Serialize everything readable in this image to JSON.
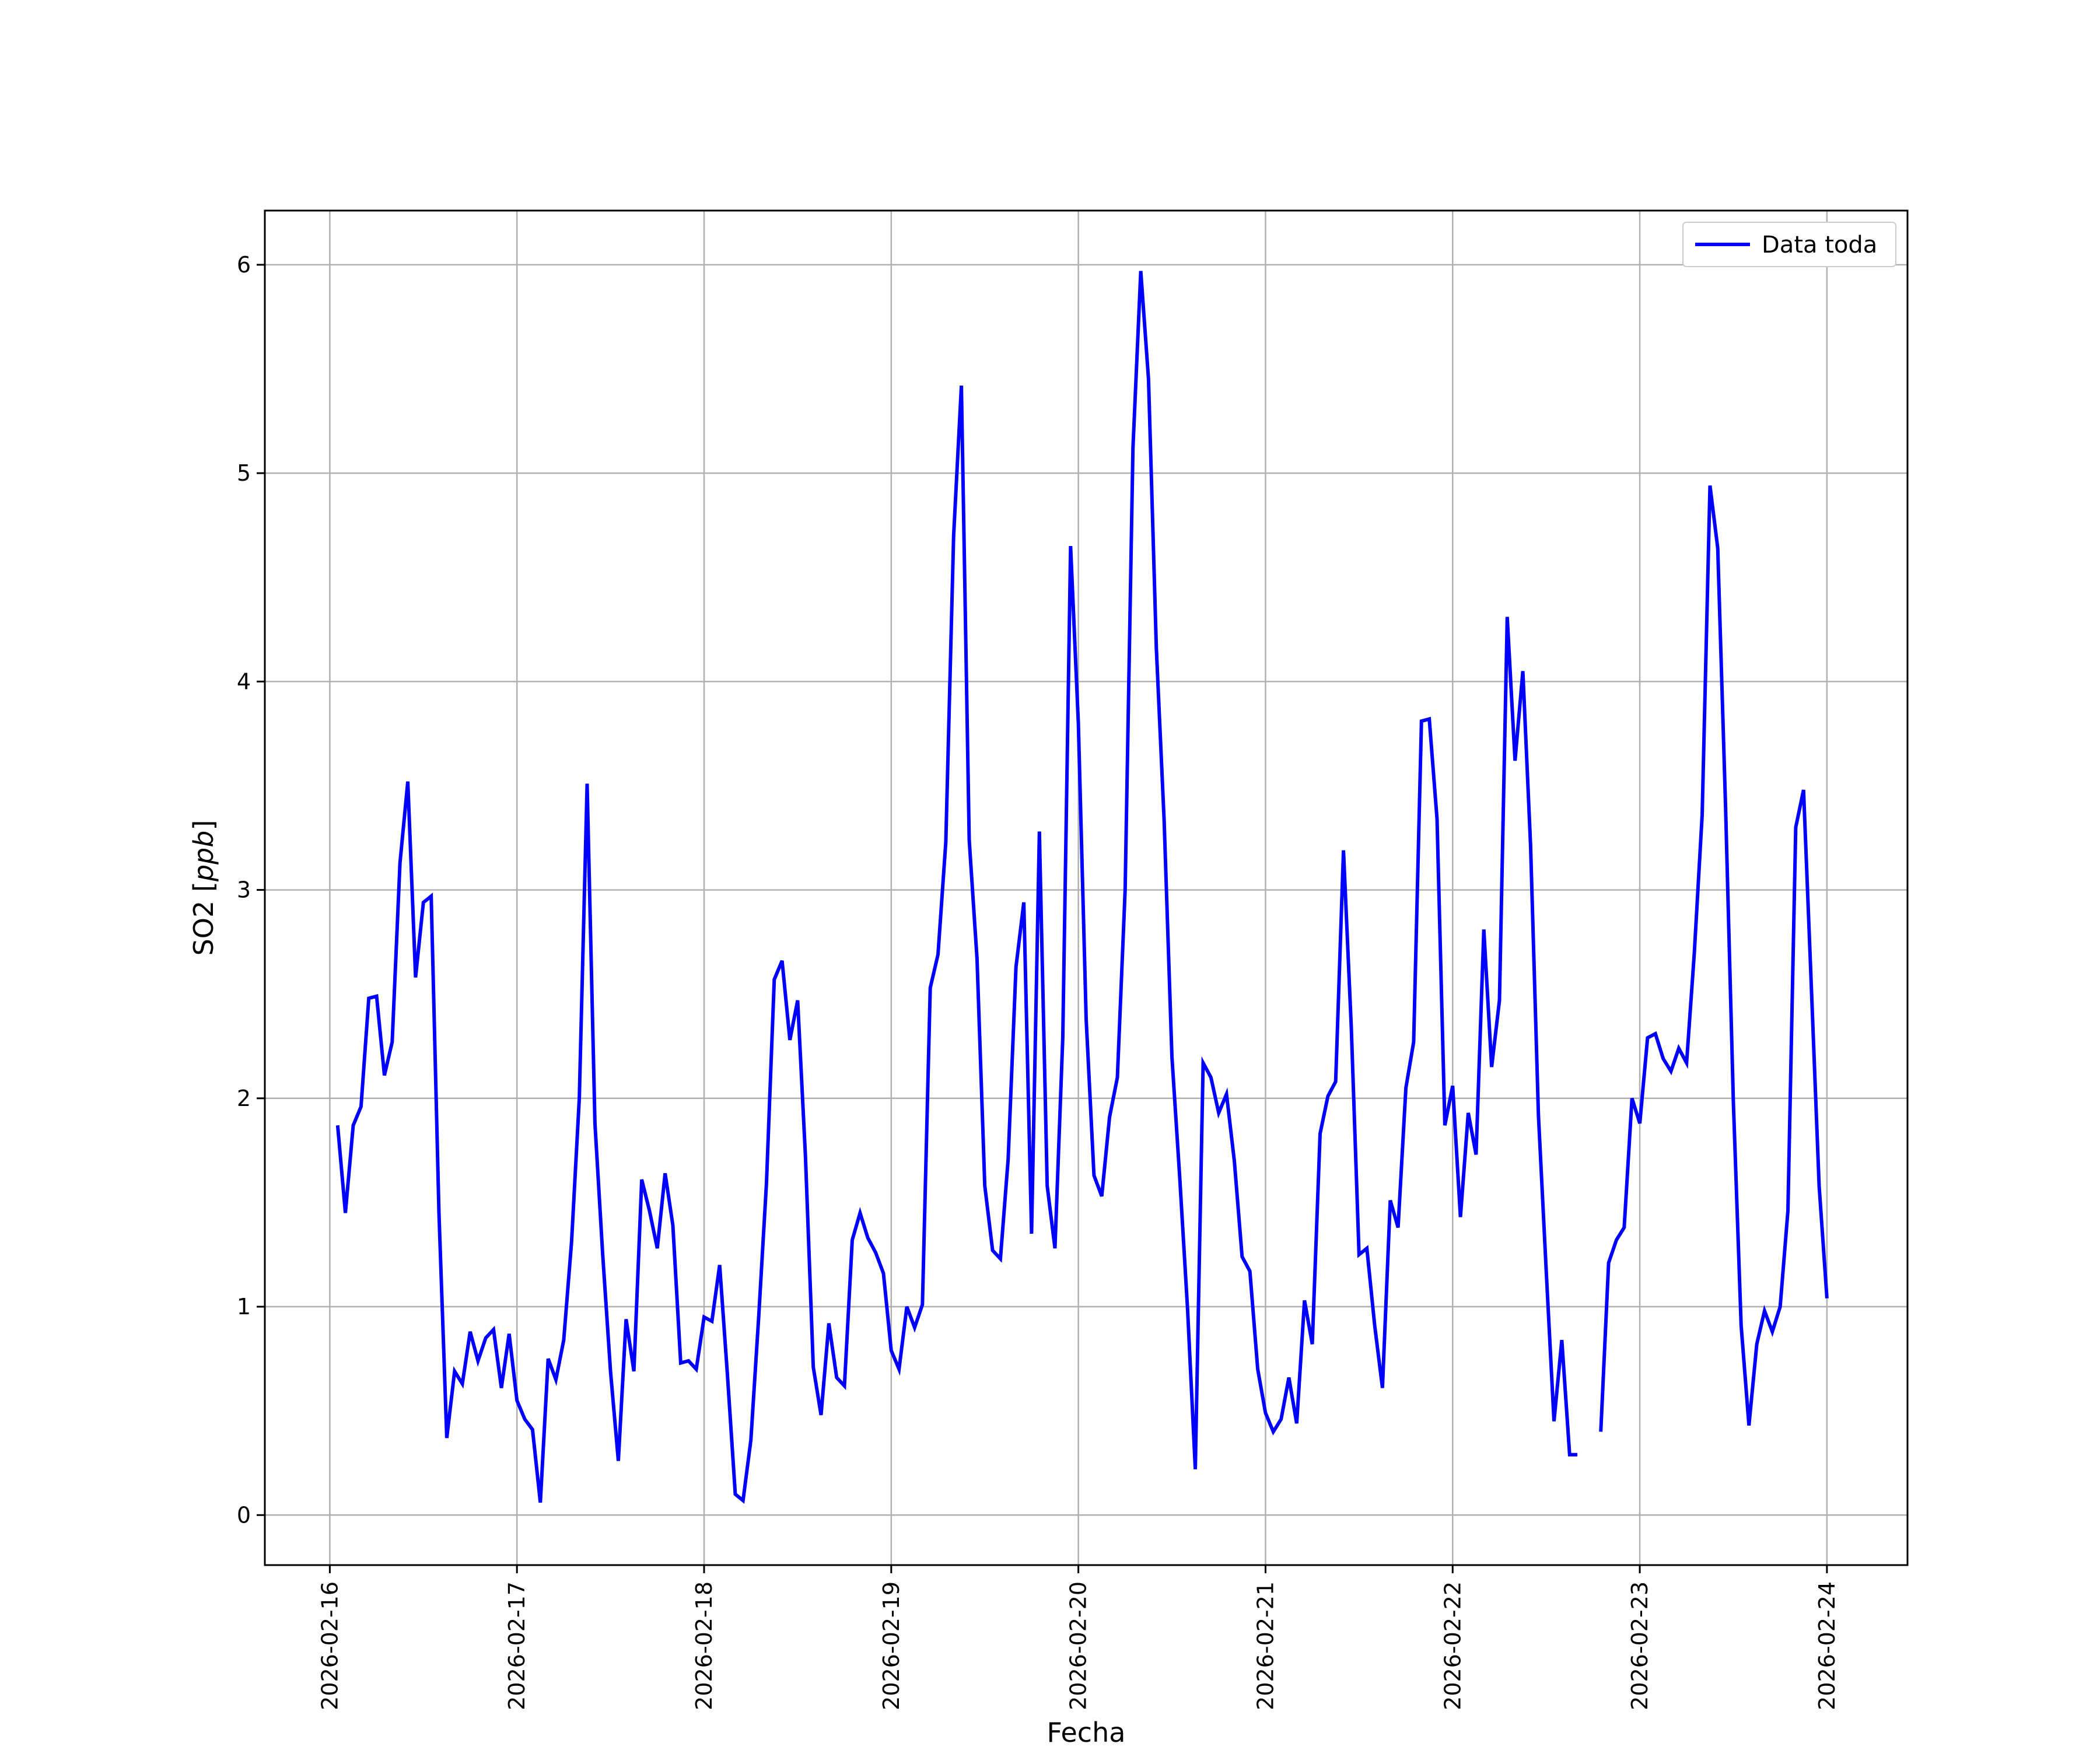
{
  "chart_data": {
    "type": "line",
    "title": "",
    "xlabel": "Fecha",
    "ylabel_prefix": "SO2 [",
    "ylabel_unit": "ppb",
    "ylabel_suffix": "]",
    "xlim": [
      "2026-02-15T15:40",
      "2026-02-24T10:20"
    ],
    "ylim": [
      -0.24,
      6.26
    ],
    "x_tick_labels": [
      "2026-02-16",
      "2026-02-17",
      "2026-02-18",
      "2026-02-19",
      "2026-02-20",
      "2026-02-21",
      "2026-02-22",
      "2026-02-23",
      "2026-02-24"
    ],
    "y_ticks": [
      0,
      1,
      2,
      3,
      4,
      5,
      6
    ],
    "y_tick_labels": [
      "0",
      "1",
      "2",
      "3",
      "4",
      "5",
      "6"
    ],
    "grid": true,
    "legend_position": "upper right",
    "colors": {
      "line": "#0000ff",
      "grid": "#b0b0b0",
      "frame": "#000000"
    },
    "series": [
      {
        "name": "Data toda",
        "segments": [
          {
            "x": [
              "2026-02-16T01:00",
              "2026-02-16T02:00",
              "2026-02-16T03:00",
              "2026-02-16T04:00",
              "2026-02-16T05:00",
              "2026-02-16T06:00",
              "2026-02-16T07:00",
              "2026-02-16T08:00",
              "2026-02-16T09:00",
              "2026-02-16T10:00",
              "2026-02-16T11:00",
              "2026-02-16T12:00",
              "2026-02-16T13:00",
              "2026-02-16T14:00",
              "2026-02-16T15:00",
              "2026-02-16T16:00",
              "2026-02-16T17:00",
              "2026-02-16T18:00",
              "2026-02-16T19:00",
              "2026-02-16T20:00",
              "2026-02-16T21:00",
              "2026-02-16T22:00",
              "2026-02-16T23:00",
              "2026-02-17T00:00",
              "2026-02-17T01:00",
              "2026-02-17T02:00",
              "2026-02-17T03:00",
              "2026-02-17T04:00",
              "2026-02-17T05:00",
              "2026-02-17T06:00",
              "2026-02-17T07:00",
              "2026-02-17T08:00",
              "2026-02-17T09:00",
              "2026-02-17T10:00",
              "2026-02-17T11:00",
              "2026-02-17T12:00",
              "2026-02-17T13:00",
              "2026-02-17T14:00",
              "2026-02-17T15:00",
              "2026-02-17T16:00",
              "2026-02-17T17:00",
              "2026-02-17T18:00",
              "2026-02-17T19:00",
              "2026-02-17T20:00",
              "2026-02-17T21:00",
              "2026-02-17T22:00",
              "2026-02-17T23:00",
              "2026-02-18T00:00",
              "2026-02-18T01:00",
              "2026-02-18T02:00",
              "2026-02-18T03:00",
              "2026-02-18T04:00",
              "2026-02-18T05:00",
              "2026-02-18T06:00",
              "2026-02-18T07:00",
              "2026-02-18T08:00",
              "2026-02-18T09:00",
              "2026-02-18T10:00",
              "2026-02-18T11:00",
              "2026-02-18T12:00",
              "2026-02-18T13:00",
              "2026-02-18T14:00",
              "2026-02-18T15:00",
              "2026-02-18T16:00",
              "2026-02-18T17:00",
              "2026-02-18T18:00",
              "2026-02-18T19:00",
              "2026-02-18T20:00",
              "2026-02-18T21:00",
              "2026-02-18T22:00",
              "2026-02-18T23:00",
              "2026-02-19T00:00",
              "2026-02-19T01:00",
              "2026-02-19T02:00",
              "2026-02-19T03:00",
              "2026-02-19T04:00",
              "2026-02-19T05:00",
              "2026-02-19T06:00",
              "2026-02-19T07:00",
              "2026-02-19T08:00",
              "2026-02-19T09:00",
              "2026-02-19T10:00",
              "2026-02-19T11:00",
              "2026-02-19T12:00",
              "2026-02-19T13:00",
              "2026-02-19T14:00",
              "2026-02-19T15:00",
              "2026-02-19T16:00",
              "2026-02-19T17:00",
              "2026-02-19T18:00",
              "2026-02-19T19:00",
              "2026-02-19T20:00",
              "2026-02-19T21:00",
              "2026-02-19T22:00",
              "2026-02-19T23:00",
              "2026-02-20T00:00",
              "2026-02-20T01:00",
              "2026-02-20T02:00",
              "2026-02-20T03:00",
              "2026-02-20T04:00",
              "2026-02-20T05:00",
              "2026-02-20T06:00",
              "2026-02-20T07:00",
              "2026-02-20T08:00",
              "2026-02-20T09:00",
              "2026-02-20T10:00",
              "2026-02-20T11:00",
              "2026-02-20T12:00",
              "2026-02-20T13:00",
              "2026-02-20T14:00",
              "2026-02-20T15:00",
              "2026-02-20T16:00",
              "2026-02-20T17:00",
              "2026-02-20T18:00",
              "2026-02-20T19:00",
              "2026-02-20T20:00",
              "2026-02-20T21:00",
              "2026-02-20T22:00",
              "2026-02-20T23:00",
              "2026-02-21T00:00",
              "2026-02-21T01:00",
              "2026-02-21T02:00",
              "2026-02-21T03:00",
              "2026-02-21T04:00",
              "2026-02-21T05:00",
              "2026-02-21T06:00",
              "2026-02-21T07:00",
              "2026-02-21T08:00",
              "2026-02-21T09:00",
              "2026-02-21T10:00",
              "2026-02-21T11:00",
              "2026-02-21T12:00",
              "2026-02-21T13:00",
              "2026-02-21T14:00",
              "2026-02-21T15:00",
              "2026-02-21T16:00",
              "2026-02-21T17:00",
              "2026-02-21T18:00",
              "2026-02-21T19:00",
              "2026-02-21T20:00",
              "2026-02-21T21:00",
              "2026-02-21T22:00",
              "2026-02-21T23:00",
              "2026-02-22T00:00",
              "2026-02-22T01:00",
              "2026-02-22T02:00",
              "2026-02-22T03:00",
              "2026-02-22T04:00",
              "2026-02-22T05:00",
              "2026-02-22T06:00",
              "2026-02-22T07:00",
              "2026-02-22T08:00",
              "2026-02-22T09:00",
              "2026-02-22T10:00",
              "2026-02-22T11:00",
              "2026-02-22T12:00",
              "2026-02-22T13:00",
              "2026-02-22T14:00",
              "2026-02-22T15:00",
              "2026-02-22T16:00"
            ],
            "y": [
              1.87,
              1.45,
              1.87,
              1.96,
              2.48,
              2.49,
              2.11,
              2.27,
              3.13,
              3.52,
              2.58,
              2.94,
              2.97,
              1.45,
              0.37,
              0.69,
              0.63,
              0.88,
              0.74,
              0.85,
              0.89,
              0.61,
              0.87,
              0.55,
              0.46,
              0.41,
              0.06,
              0.75,
              0.65,
              0.84,
              1.31,
              2.0,
              3.51,
              1.88,
              1.25,
              0.69,
              0.26,
              0.94,
              0.69,
              1.61,
              1.46,
              1.28,
              1.64,
              1.39,
              0.73,
              0.74,
              0.7,
              0.95,
              0.93,
              1.2,
              0.67,
              0.1,
              0.07,
              0.36,
              0.95,
              1.59,
              2.57,
              2.66,
              2.28,
              2.47,
              1.72,
              0.71,
              0.48,
              0.92,
              0.66,
              0.62,
              1.32,
              1.45,
              1.33,
              1.26,
              1.16,
              0.79,
              0.7,
              1.0,
              0.9,
              1.01,
              2.53,
              2.69,
              3.23,
              4.7,
              5.42,
              3.24,
              2.67,
              1.58,
              1.27,
              1.23,
              1.71,
              2.63,
              2.94,
              1.35,
              3.28,
              1.58,
              1.28,
              2.29,
              4.65,
              3.8,
              2.38,
              1.63,
              1.53,
              1.91,
              2.1,
              3.0,
              5.12,
              5.97,
              5.45,
              4.16,
              3.33,
              2.2,
              1.62,
              0.99,
              0.22,
              2.17,
              2.1,
              1.93,
              2.02,
              1.7,
              1.24,
              1.17,
              0.7,
              0.49,
              0.4,
              0.46,
              0.66,
              0.44,
              1.03,
              0.82,
              1.83,
              2.01,
              2.08,
              3.19,
              2.34,
              1.25,
              1.28,
              0.91,
              0.61,
              1.51,
              1.38,
              2.05,
              2.27,
              3.81,
              3.82,
              3.34,
              1.87,
              2.06,
              1.43,
              1.93,
              1.73,
              2.81,
              2.15,
              2.47,
              4.31,
              3.62,
              4.05,
              3.21,
              1.92,
              1.17,
              0.45,
              0.84,
              0.29,
              0.29
            ]
          },
          {
            "x": [
              "2026-02-22T19:00",
              "2026-02-22T20:00",
              "2026-02-22T21:00",
              "2026-02-22T22:00",
              "2026-02-22T23:00",
              "2026-02-23T00:00",
              "2026-02-23T01:00",
              "2026-02-23T02:00",
              "2026-02-23T03:00",
              "2026-02-23T04:00",
              "2026-02-23T05:00",
              "2026-02-23T06:00",
              "2026-02-23T07:00",
              "2026-02-23T08:00",
              "2026-02-23T09:00",
              "2026-02-23T10:00",
              "2026-02-23T11:00",
              "2026-02-23T12:00",
              "2026-02-23T13:00",
              "2026-02-23T14:00",
              "2026-02-23T15:00",
              "2026-02-23T16:00",
              "2026-02-23T17:00",
              "2026-02-23T18:00",
              "2026-02-23T19:00",
              "2026-02-23T20:00",
              "2026-02-23T21:00",
              "2026-02-23T22:00",
              "2026-02-23T23:00",
              "2026-02-24T00:00"
            ],
            "y": [
              0.4,
              1.21,
              1.32,
              1.38,
              2.0,
              1.88,
              2.29,
              2.31,
              2.19,
              2.13,
              2.24,
              2.17,
              2.7,
              3.36,
              4.94,
              4.64,
              3.4,
              1.98,
              0.91,
              0.43,
              0.82,
              0.98,
              0.88,
              1.0,
              1.46,
              3.3,
              3.48,
              2.54,
              1.58,
              1.04
            ]
          }
        ]
      }
    ]
  }
}
